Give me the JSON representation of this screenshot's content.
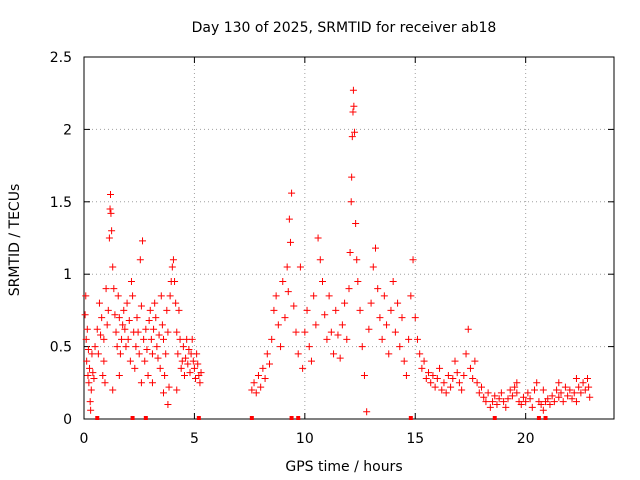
{
  "chart_data": {
    "type": "scatter",
    "title": "Day 130 of 2025, SRMTID for receiver ab18",
    "xlabel": "GPS time / hours",
    "ylabel": "SRMTID / TECUs",
    "xlim": [
      0,
      24
    ],
    "ylim": [
      0,
      2.5
    ],
    "x_ticks": [
      0,
      5,
      10,
      15,
      20
    ],
    "x_tick_labels": [
      "0",
      "5",
      "10",
      "15",
      "20"
    ],
    "y_ticks": [
      0,
      0.5,
      1,
      1.5,
      2,
      2.5
    ],
    "y_tick_labels": [
      "0",
      "0.5",
      "1",
      "1.5",
      "2",
      "2.5"
    ],
    "grid": true,
    "marker": "plus",
    "series": [
      {
        "name": "SRMTID",
        "color": "#ff0000",
        "points": [
          [
            0.05,
            0.72
          ],
          [
            0.08,
            0.85
          ],
          [
            0.1,
            0.55
          ],
          [
            0.12,
            0.4
          ],
          [
            0.15,
            0.62
          ],
          [
            0.18,
            0.3
          ],
          [
            0.2,
            0.48
          ],
          [
            0.22,
            0.25
          ],
          [
            0.25,
            0.35
          ],
          [
            0.28,
            0.12
          ],
          [
            0.3,
            0.06
          ],
          [
            0.33,
            0.2
          ],
          [
            0.36,
            0.45
          ],
          [
            0.4,
            0.32
          ],
          [
            0.45,
            0.28
          ],
          [
            0.5,
            0.5
          ],
          [
            0.6,
            0.62
          ],
          [
            0.65,
            0.45
          ],
          [
            0.7,
            0.8
          ],
          [
            0.75,
            0.58
          ],
          [
            0.8,
            0.7
          ],
          [
            0.85,
            0.3
          ],
          [
            0.9,
            0.55
          ],
          [
            0.95,
            0.25
          ],
          [
            1.0,
            0.9
          ],
          [
            1.05,
            0.65
          ],
          [
            1.1,
            0.75
          ],
          [
            1.15,
            1.25
          ],
          [
            1.18,
            1.45
          ],
          [
            1.2,
            1.55
          ],
          [
            1.22,
            1.42
          ],
          [
            1.25,
            1.3
          ],
          [
            1.3,
            1.05
          ],
          [
            1.35,
            0.9
          ],
          [
            1.4,
            0.72
          ],
          [
            1.45,
            0.6
          ],
          [
            1.5,
            0.5
          ],
          [
            1.55,
            0.85
          ],
          [
            1.6,
            0.7
          ],
          [
            1.65,
            0.45
          ],
          [
            1.7,
            0.55
          ],
          [
            1.75,
            0.65
          ],
          [
            1.8,
            0.75
          ],
          [
            1.85,
            0.62
          ],
          [
            1.9,
            0.5
          ],
          [
            1.95,
            0.8
          ],
          [
            2.0,
            0.55
          ],
          [
            2.05,
            0.68
          ],
          [
            2.1,
            0.4
          ],
          [
            2.15,
            0.95
          ],
          [
            2.2,
            0.85
          ],
          [
            2.25,
            0.6
          ],
          [
            2.3,
            0.35
          ],
          [
            2.35,
            0.5
          ],
          [
            2.4,
            0.7
          ],
          [
            2.45,
            0.6
          ],
          [
            2.5,
            0.45
          ],
          [
            2.55,
            1.1
          ],
          [
            2.6,
            0.78
          ],
          [
            2.65,
            1.23
          ],
          [
            2.7,
            0.55
          ],
          [
            2.75,
            0.4
          ],
          [
            2.8,
            0.62
          ],
          [
            2.85,
            0.48
          ],
          [
            2.9,
            0.3
          ],
          [
            2.95,
            0.68
          ],
          [
            3.0,
            0.75
          ],
          [
            3.05,
            0.55
          ],
          [
            3.1,
            0.45
          ],
          [
            3.15,
            0.62
          ],
          [
            3.2,
            0.8
          ],
          [
            3.25,
            0.7
          ],
          [
            3.3,
            0.5
          ],
          [
            3.35,
            0.42
          ],
          [
            3.4,
            0.58
          ],
          [
            3.45,
            0.35
          ],
          [
            3.5,
            0.85
          ],
          [
            3.55,
            0.65
          ],
          [
            3.6,
            0.55
          ],
          [
            3.65,
            0.3
          ],
          [
            3.7,
            0.45
          ],
          [
            3.75,
            0.75
          ],
          [
            3.8,
            0.6
          ],
          [
            3.85,
            0.22
          ],
          [
            3.9,
            0.85
          ],
          [
            3.95,
            0.95
          ],
          [
            4.0,
            1.05
          ],
          [
            4.05,
            1.1
          ],
          [
            4.1,
            0.95
          ],
          [
            4.15,
            0.8
          ],
          [
            4.2,
            0.6
          ],
          [
            4.25,
            0.45
          ],
          [
            4.3,
            0.75
          ],
          [
            4.35,
            0.55
          ],
          [
            4.4,
            0.35
          ],
          [
            4.45,
            0.4
          ],
          [
            4.5,
            0.5
          ],
          [
            4.55,
            0.3
          ],
          [
            4.6,
            0.42
          ],
          [
            4.65,
            0.55
          ],
          [
            4.7,
            0.38
          ],
          [
            4.75,
            0.48
          ],
          [
            4.8,
            0.32
          ],
          [
            4.85,
            0.45
          ],
          [
            4.9,
            0.55
          ],
          [
            4.95,
            0.4
          ],
          [
            5.0,
            0.35
          ],
          [
            5.05,
            0.28
          ],
          [
            5.1,
            0.45
          ],
          [
            5.15,
            0.38
          ],
          [
            5.2,
            0.3
          ],
          [
            5.25,
            0.25
          ],
          [
            5.3,
            0.32
          ],
          [
            3.8,
            0.1
          ],
          [
            3.6,
            0.18
          ],
          [
            4.2,
            0.2
          ],
          [
            1.3,
            0.2
          ],
          [
            2.6,
            0.25
          ],
          [
            0.9,
            0.4
          ],
          [
            1.6,
            0.3
          ],
          [
            3.1,
            0.25
          ],
          [
            7.6,
            0.2
          ],
          [
            7.7,
            0.25
          ],
          [
            7.8,
            0.18
          ],
          [
            7.9,
            0.3
          ],
          [
            8.0,
            0.22
          ],
          [
            8.1,
            0.35
          ],
          [
            8.2,
            0.28
          ],
          [
            8.3,
            0.45
          ],
          [
            8.4,
            0.38
          ],
          [
            8.5,
            0.55
          ],
          [
            8.6,
            0.75
          ],
          [
            8.7,
            0.85
          ],
          [
            8.8,
            0.65
          ],
          [
            8.9,
            0.5
          ],
          [
            9.0,
            0.95
          ],
          [
            9.1,
            0.7
          ],
          [
            9.2,
            1.05
          ],
          [
            9.25,
            0.88
          ],
          [
            9.3,
            1.38
          ],
          [
            9.35,
            1.22
          ],
          [
            9.4,
            1.56
          ],
          [
            9.5,
            0.78
          ],
          [
            9.6,
            0.6
          ],
          [
            9.7,
            0.45
          ],
          [
            9.8,
            1.05
          ],
          [
            9.9,
            0.35
          ],
          [
            10.0,
            0.6
          ],
          [
            10.1,
            0.75
          ],
          [
            10.2,
            0.5
          ],
          [
            10.3,
            0.4
          ],
          [
            10.4,
            0.85
          ],
          [
            10.5,
            0.65
          ],
          [
            10.6,
            1.25
          ],
          [
            10.7,
            1.1
          ],
          [
            10.8,
            0.95
          ],
          [
            10.9,
            0.72
          ],
          [
            11.0,
            0.55
          ],
          [
            11.1,
            0.85
          ],
          [
            11.2,
            0.6
          ],
          [
            11.3,
            0.45
          ],
          [
            11.4,
            0.75
          ],
          [
            11.5,
            0.58
          ],
          [
            11.6,
            0.42
          ],
          [
            11.7,
            0.65
          ],
          [
            11.8,
            0.8
          ],
          [
            11.9,
            0.55
          ],
          [
            12.0,
            0.9
          ],
          [
            12.05,
            1.15
          ],
          [
            12.1,
            1.5
          ],
          [
            12.12,
            1.67
          ],
          [
            12.15,
            1.95
          ],
          [
            12.18,
            2.12
          ],
          [
            12.2,
            2.27
          ],
          [
            12.22,
            2.16
          ],
          [
            12.25,
            1.98
          ],
          [
            12.3,
            1.35
          ],
          [
            12.35,
            1.1
          ],
          [
            12.4,
            0.95
          ],
          [
            12.5,
            0.75
          ],
          [
            12.6,
            0.5
          ],
          [
            12.7,
            0.3
          ],
          [
            12.8,
            0.05
          ],
          [
            12.9,
            0.62
          ],
          [
            13.0,
            0.8
          ],
          [
            13.1,
            1.05
          ],
          [
            13.2,
            1.18
          ],
          [
            13.3,
            0.9
          ],
          [
            13.4,
            0.7
          ],
          [
            13.5,
            0.55
          ],
          [
            13.6,
            0.85
          ],
          [
            13.7,
            0.65
          ],
          [
            13.8,
            0.45
          ],
          [
            13.9,
            0.75
          ],
          [
            14.0,
            0.95
          ],
          [
            14.1,
            0.6
          ],
          [
            14.2,
            0.8
          ],
          [
            14.3,
            0.5
          ],
          [
            14.4,
            0.7
          ],
          [
            14.5,
            0.4
          ],
          [
            14.6,
            0.3
          ],
          [
            14.7,
            0.55
          ],
          [
            14.8,
            0.85
          ],
          [
            14.9,
            1.1
          ],
          [
            15.0,
            0.7
          ],
          [
            15.1,
            0.55
          ],
          [
            15.2,
            0.45
          ],
          [
            15.3,
            0.35
          ],
          [
            15.4,
            0.4
          ],
          [
            15.5,
            0.28
          ],
          [
            15.6,
            0.32
          ],
          [
            15.7,
            0.25
          ],
          [
            15.8,
            0.3
          ],
          [
            15.9,
            0.22
          ],
          [
            16.0,
            0.28
          ],
          [
            16.1,
            0.35
          ],
          [
            16.2,
            0.2
          ],
          [
            16.3,
            0.25
          ],
          [
            16.4,
            0.18
          ],
          [
            16.5,
            0.3
          ],
          [
            16.6,
            0.22
          ],
          [
            16.7,
            0.28
          ],
          [
            16.8,
            0.4
          ],
          [
            16.9,
            0.32
          ],
          [
            17.0,
            0.25
          ],
          [
            17.1,
            0.2
          ],
          [
            17.2,
            0.3
          ],
          [
            17.3,
            0.45
          ],
          [
            17.4,
            0.62
          ],
          [
            17.5,
            0.35
          ],
          [
            17.6,
            0.28
          ],
          [
            17.7,
            0.4
          ],
          [
            17.8,
            0.25
          ],
          [
            17.9,
            0.18
          ],
          [
            18.0,
            0.22
          ],
          [
            18.1,
            0.15
          ],
          [
            18.2,
            0.12
          ],
          [
            18.3,
            0.18
          ],
          [
            18.4,
            0.08
          ],
          [
            18.5,
            0.12
          ],
          [
            18.6,
            0.16
          ],
          [
            18.7,
            0.1
          ],
          [
            18.8,
            0.14
          ],
          [
            18.9,
            0.18
          ],
          [
            19.0,
            0.12
          ],
          [
            19.1,
            0.08
          ],
          [
            19.2,
            0.14
          ],
          [
            19.3,
            0.2
          ],
          [
            19.4,
            0.16
          ],
          [
            19.5,
            0.22
          ],
          [
            19.6,
            0.18
          ],
          [
            19.7,
            0.12
          ],
          [
            19.8,
            0.1
          ],
          [
            19.9,
            0.15
          ],
          [
            20.0,
            0.12
          ],
          [
            20.1,
            0.18
          ],
          [
            20.2,
            0.14
          ],
          [
            20.3,
            0.08
          ],
          [
            20.4,
            0.2
          ],
          [
            20.5,
            0.25
          ],
          [
            20.6,
            0.12
          ],
          [
            20.7,
            0.1
          ],
          [
            20.8,
            0.06
          ],
          [
            20.9,
            0.12
          ],
          [
            21.0,
            0.14
          ],
          [
            21.1,
            0.1
          ],
          [
            21.2,
            0.16
          ],
          [
            21.3,
            0.12
          ],
          [
            21.4,
            0.2
          ],
          [
            21.5,
            0.15
          ],
          [
            21.6,
            0.18
          ],
          [
            21.7,
            0.12
          ],
          [
            21.8,
            0.22
          ],
          [
            21.9,
            0.16
          ],
          [
            22.0,
            0.2
          ],
          [
            22.1,
            0.14
          ],
          [
            22.2,
            0.18
          ],
          [
            22.3,
            0.12
          ],
          [
            22.4,
            0.22
          ],
          [
            22.5,
            0.18
          ],
          [
            22.6,
            0.25
          ],
          [
            22.7,
            0.2
          ],
          [
            22.8,
            0.28
          ],
          [
            22.85,
            0.22
          ],
          [
            22.9,
            0.15
          ],
          [
            22.3,
            0.28
          ],
          [
            21.5,
            0.25
          ],
          [
            20.8,
            0.2
          ],
          [
            19.6,
            0.25
          ]
        ]
      }
    ],
    "axis_markers_x": [
      0.6,
      2.2,
      2.8,
      5.2,
      7.6,
      9.4,
      9.7,
      14.8,
      18.6,
      20.6,
      20.9
    ]
  }
}
